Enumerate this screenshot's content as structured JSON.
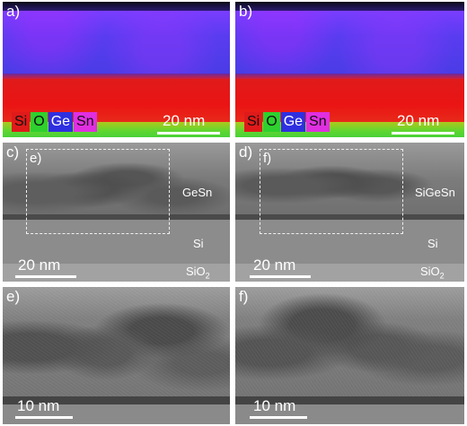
{
  "panels": {
    "a": {
      "label": "a)"
    },
    "b": {
      "label": "b)"
    },
    "c": {
      "label": "c)",
      "inset_label": "e)",
      "layer_top": "GeSn",
      "layer_mid": "Si",
      "layer_bot": "SiO",
      "layer_bot_sub": "2"
    },
    "d": {
      "label": "d)",
      "inset_label": "f)",
      "layer_top": "SiGeSn",
      "layer_mid": "Si",
      "layer_bot": "SiO",
      "layer_bot_sub": "2"
    },
    "e": {
      "label": "e)"
    },
    "f": {
      "label": "f)"
    }
  },
  "legend": {
    "items": [
      {
        "text": "Si",
        "color": "#e01a1a"
      },
      {
        "text": "O",
        "color": "#2fd02f"
      },
      {
        "text": "Ge",
        "color": "#2f2fe0"
      },
      {
        "text": "Sn",
        "color": "#e02fe0"
      }
    ]
  },
  "scale_bars": {
    "edx": "20 nm",
    "tem_overview": "20 nm",
    "tem_hr": "10 nm"
  },
  "colors": {
    "si": "#e01a1a",
    "oxygen": "#2fd02f",
    "germanium": "#2f2fe0",
    "tin": "#e02fe0"
  }
}
